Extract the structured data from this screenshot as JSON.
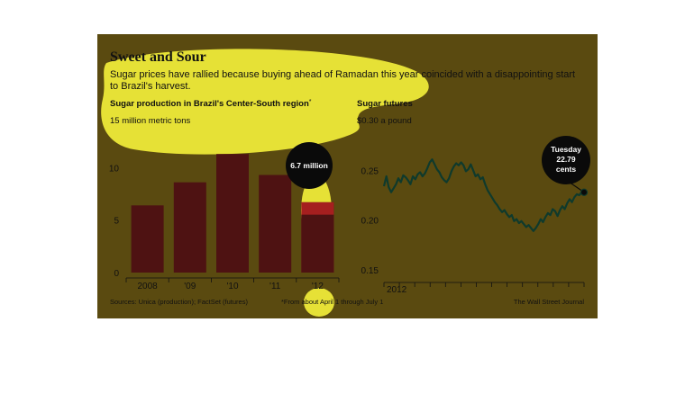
{
  "title": "Sweet and Sour",
  "subtitle_line1": "Sugar prices have rallied because buying ahead of Ramadan this year coincided with a disappointing start",
  "subtitle_line2": "to Brazil's harvest.",
  "sources": "Sources: Unica (production); FactSet (futures)",
  "footnote": "*From about April 1 through July 1",
  "credit": "The Wall Street Journal",
  "colors": {
    "background": "#5a4a10",
    "bar": "#4e1212",
    "bar_highlight": "#a51f1f",
    "line": "#0f3a2c",
    "highlighter": "#f2ee3a",
    "callout": "#0a0a0a"
  },
  "chart_data": [
    {
      "type": "bar",
      "title": "Sugar production in Brazil's Center-South region",
      "title_marker": "*",
      "unit_label": "15 million metric tons",
      "categories": [
        "2008",
        "'09",
        "'10",
        "'11",
        "'12"
      ],
      "values": [
        6.4,
        8.6,
        11.3,
        9.3,
        6.7
      ],
      "ylim": [
        0,
        15
      ],
      "yticks": [
        0,
        5,
        10
      ],
      "highlight_index": 4,
      "highlight_portion": 0.9,
      "callout": "6.7 million",
      "grid": false
    },
    {
      "type": "line",
      "title": "Sugar futures",
      "unit_label": "$0.30 a pound",
      "x_label_start": "2012",
      "ylim": [
        0.15,
        0.3
      ],
      "yticks": [
        "0.25",
        "0.20",
        "0.15"
      ],
      "ytick_values": [
        0.25,
        0.2,
        0.15
      ],
      "callout": [
        "Tuesday",
        "22.79",
        "cents"
      ],
      "last_value": 0.2279,
      "values": [
        0.234,
        0.244,
        0.233,
        0.228,
        0.232,
        0.236,
        0.242,
        0.238,
        0.245,
        0.243,
        0.24,
        0.236,
        0.244,
        0.241,
        0.246,
        0.248,
        0.244,
        0.247,
        0.252,
        0.258,
        0.261,
        0.256,
        0.251,
        0.248,
        0.243,
        0.24,
        0.238,
        0.242,
        0.249,
        0.254,
        0.257,
        0.255,
        0.258,
        0.255,
        0.249,
        0.251,
        0.256,
        0.25,
        0.244,
        0.246,
        0.241,
        0.243,
        0.236,
        0.23,
        0.226,
        0.222,
        0.218,
        0.215,
        0.211,
        0.208,
        0.21,
        0.206,
        0.203,
        0.205,
        0.199,
        0.201,
        0.197,
        0.199,
        0.196,
        0.193,
        0.195,
        0.192,
        0.189,
        0.192,
        0.196,
        0.201,
        0.198,
        0.203,
        0.207,
        0.205,
        0.211,
        0.209,
        0.204,
        0.21,
        0.214,
        0.211,
        0.217,
        0.221,
        0.218,
        0.223,
        0.226,
        0.225,
        0.228,
        0.2279
      ]
    }
  ]
}
